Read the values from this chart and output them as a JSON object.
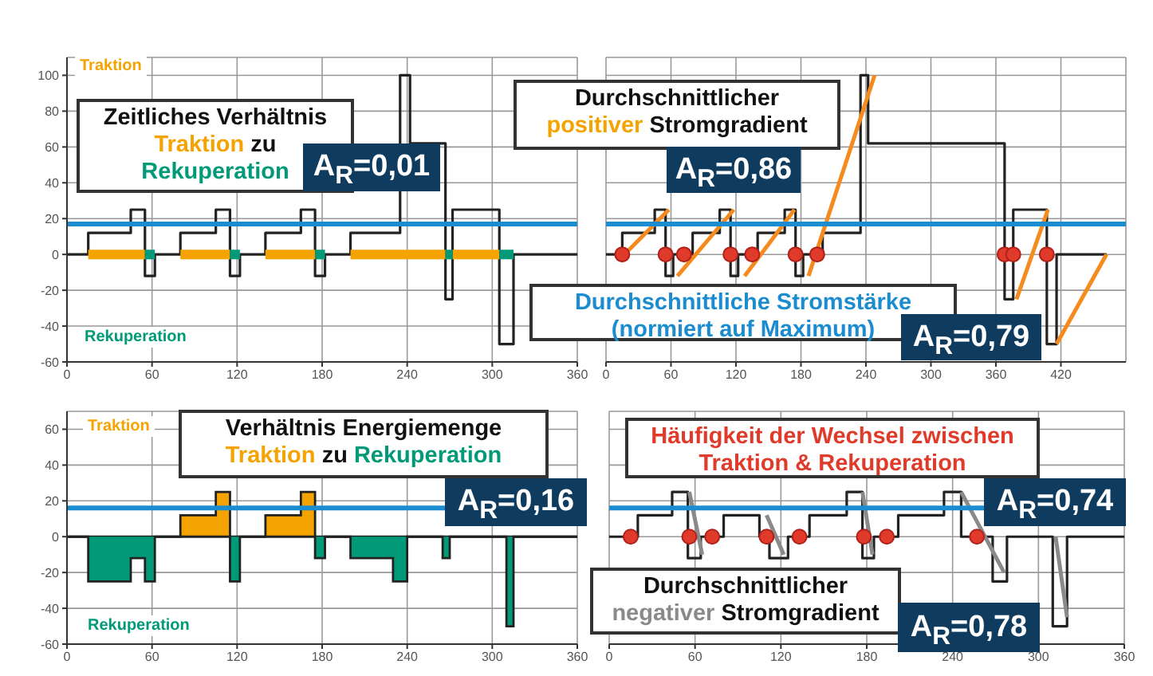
{
  "chart_data": [
    {
      "type": "step",
      "xlim": [
        0,
        360
      ],
      "xticks": [
        0,
        60,
        120,
        180,
        240,
        300,
        360
      ],
      "ylim": [
        -60,
        110
      ],
      "yticks": [
        -60,
        -40,
        -20,
        0,
        20,
        40,
        60,
        80,
        100
      ],
      "grid": true,
      "ref_lines": [
        {
          "axis": "y",
          "value": 17,
          "color": "#1a8ccf"
        }
      ],
      "series": [
        {
          "color": "#222222",
          "x": [
            0,
            15,
            45,
            55,
            62,
            80,
            105,
            115,
            122,
            140,
            165,
            175,
            182,
            200,
            235,
            242,
            267,
            272,
            305,
            315,
            360
          ],
          "values": [
            0,
            12,
            25,
            -12,
            0,
            12,
            25,
            -12,
            0,
            12,
            25,
            -12,
            0,
            12,
            100,
            62,
            -25,
            25,
            -50,
            0,
            0
          ]
        },
        {
          "type": "line",
          "color": "#f5a300",
          "x": [
            15,
            55,
            58,
            80,
            115,
            118,
            140,
            175,
            178,
            200,
            267,
            269,
            272,
            305
          ],
          "values": [
            0,
            0,
            null,
            0,
            0,
            null,
            0,
            0,
            null,
            0,
            0,
            null,
            0,
            0
          ]
        },
        {
          "type": "line",
          "color": "#009a78",
          "x": [
            55,
            62,
            70,
            115,
            122,
            130,
            175,
            182,
            190,
            267,
            272,
            290,
            305,
            315
          ],
          "values": [
            0,
            0,
            null,
            0,
            0,
            null,
            0,
            0,
            null,
            0,
            0,
            null,
            0,
            0
          ]
        }
      ],
      "annotations": [
        "Traktion",
        "Rekuperation",
        "Zeitliches Verhältnis",
        "Traktion",
        "zu",
        "Rekuperation",
        "A$_{R}$=0,01"
      ]
    },
    {
      "type": "step",
      "xlim": [
        0,
        480
      ],
      "xticks": [
        0,
        60,
        120,
        180,
        240,
        300,
        360,
        420
      ],
      "ylim": [
        -60,
        110
      ],
      "yticks": [
        -60,
        -40,
        -20,
        0,
        20,
        40,
        60,
        80,
        100
      ],
      "grid": true,
      "tick_labels": "x",
      "ref_lines": [
        {
          "axis": "y",
          "value": 17,
          "color": "#1a8ccf"
        }
      ],
      "series": [
        {
          "color": "#222222",
          "x": [
            0,
            15,
            45,
            55,
            62,
            80,
            105,
            115,
            122,
            140,
            165,
            175,
            182,
            200,
            235,
            242,
            368,
            376,
            407,
            416,
            462
          ],
          "values": [
            0,
            12,
            25,
            -12,
            0,
            12,
            25,
            -12,
            0,
            12,
            25,
            -12,
            0,
            12,
            100,
            62,
            -25,
            25,
            -50,
            0,
            0
          ]
        },
        {
          "type": "line",
          "color": "#f58a1f",
          "x": [
            17,
            58,
            60,
            66,
            118,
            120,
            128,
            174,
            176,
            187,
            248,
            250,
            379,
            408,
            410,
            416,
            462
          ],
          "values": [
            0,
            25,
            null,
            -12,
            25,
            null,
            -12,
            25,
            null,
            -12,
            100,
            null,
            -25,
            25,
            null,
            -50,
            0
          ]
        },
        {
          "type": "scatter",
          "color": "#e03a2a",
          "marker": "circle",
          "x": [
            15,
            55,
            72,
            115,
            135,
            175,
            195,
            368,
            376,
            407
          ],
          "values": [
            0,
            0,
            0,
            0,
            0,
            0,
            0,
            0,
            0,
            0
          ]
        }
      ],
      "annotations": [
        "Durchschnittlicher",
        "positiver",
        "Stromgradient",
        "A$_{R}$=0,86",
        "Durchschnittliche Stromstärke",
        "(normiert auf Maximum)",
        "A$_{R}$=0,79"
      ]
    },
    {
      "type": "area",
      "xlim": [
        0,
        360
      ],
      "xticks": [
        0,
        60,
        120,
        180,
        240,
        300,
        360
      ],
      "ylim": [
        -60,
        70
      ],
      "yticks": [
        -60,
        -40,
        -20,
        0,
        20,
        40,
        60
      ],
      "grid": true,
      "ref_lines": [
        {
          "axis": "y",
          "value": 16,
          "color": "#1a8ccf"
        }
      ],
      "series": [
        {
          "color": "#f5a300",
          "x": [
            0,
            80,
            105,
            115,
            140,
            165,
            175,
            360
          ],
          "values": [
            0,
            12,
            25,
            0,
            12,
            25,
            0,
            0
          ]
        },
        {
          "color": "#009a78",
          "x": [
            0,
            15,
            45,
            55,
            62,
            115,
            122,
            175,
            182,
            200,
            230,
            240,
            265,
            270,
            310,
            315,
            360
          ],
          "values": [
            0,
            -25,
            -12,
            -25,
            0,
            -25,
            0,
            -12,
            0,
            -12,
            -25,
            0,
            -12,
            0,
            -50,
            0,
            0
          ]
        }
      ],
      "annotations": [
        "Traktion",
        "Rekuperation",
        "Verhältnis Energiemenge",
        "Traktion",
        "zu",
        "Rekuperation",
        "A$_{R}$=0,16"
      ]
    },
    {
      "type": "step",
      "xlim": [
        0,
        360
      ],
      "xticks": [
        0,
        60,
        120,
        180,
        240,
        300,
        360
      ],
      "ylim": [
        -60,
        70
      ],
      "yticks": [
        -60,
        -40,
        -20,
        0,
        20,
        40,
        60
      ],
      "grid": true,
      "tick_labels": "x",
      "ref_lines": [
        {
          "axis": "y",
          "value": 16,
          "color": "#1a8ccf"
        }
      ],
      "series": [
        {
          "color": "#222222",
          "x": [
            0,
            20,
            44,
            55,
            64,
            80,
            105,
            112,
            125,
            140,
            166,
            177,
            185,
            202,
            234,
            246,
            268,
            278,
            310,
            320,
            360
          ],
          "values": [
            0,
            12,
            25,
            -12,
            0,
            12,
            0,
            -12,
            0,
            12,
            25,
            -12,
            0,
            12,
            25,
            0,
            -25,
            0,
            -50,
            0,
            0
          ]
        },
        {
          "type": "line",
          "color": "#8a8a8a",
          "x": [
            56,
            65,
            67,
            110,
            122,
            124,
            177,
            184,
            186,
            246,
            276,
            278,
            312,
            320
          ],
          "values": [
            25,
            -10,
            null,
            12,
            -10,
            null,
            25,
            -10,
            null,
            25,
            -20,
            null,
            0,
            -45
          ]
        },
        {
          "type": "scatter",
          "color": "#e03a2a",
          "marker": "circle",
          "x": [
            15,
            56,
            72,
            110,
            133,
            178,
            194,
            257
          ],
          "values": [
            0,
            0,
            0,
            0,
            0,
            0,
            0,
            0
          ]
        }
      ],
      "annotations": [
        "Häufigkeit der Wechsel zwischen",
        "Traktion & Rekuperation",
        "A$_{R}$=0,74",
        "Durchschnittlicher",
        "negativer",
        "Stromgradient",
        "A$_{R}$=0,78"
      ]
    }
  ]
}
